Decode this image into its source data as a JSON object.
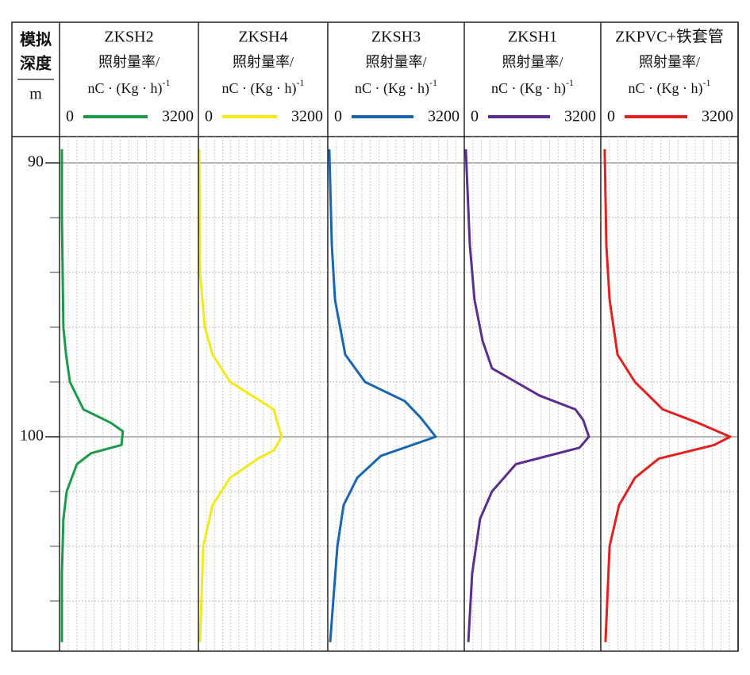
{
  "depth_axis": {
    "title_lines": [
      "模拟",
      "深度"
    ],
    "unit": "m",
    "ylim": [
      89.04,
      107.83
    ],
    "yticks": [
      90,
      100
    ],
    "minor_yticks": [
      92,
      94,
      96,
      98,
      102,
      104,
      106
    ]
  },
  "chart_data": [
    {
      "type": "line",
      "title": "ZKSH2",
      "subtitle": "照射量率/",
      "unit": "nC · (Kg · h)",
      "unit_exponent": "-1",
      "color": "#1a9a4a",
      "xlim": [
        0,
        3200
      ],
      "xticks": [
        0,
        3200
      ],
      "minor_xticks": [
        200,
        400,
        600,
        800,
        1000,
        1200,
        1400,
        1600,
        1800,
        2000,
        2200,
        2400,
        2600,
        2800,
        3000
      ],
      "depth": [
        89.5,
        92,
        96,
        97,
        98,
        99,
        99.5,
        99.8,
        100.3,
        100.6,
        101,
        102,
        103,
        105,
        107.5
      ],
      "values": [
        55,
        55,
        90,
        150,
        240,
        550,
        1190,
        1460,
        1430,
        730,
        400,
        165,
        90,
        55,
        55
      ]
    },
    {
      "type": "line",
      "title": "ZKSH4",
      "subtitle": "照射量率/",
      "unit": "nC · (Kg · h)",
      "unit_exponent": "-1",
      "color": "#f2ea12",
      "xlim": [
        0,
        3200
      ],
      "xticks": [
        0,
        3200
      ],
      "minor_xticks": [
        200,
        400,
        600,
        800,
        1000,
        1200,
        1400,
        1600,
        1800,
        2000,
        2200,
        2400,
        2600,
        2800,
        3000
      ],
      "depth": [
        89.5,
        94,
        96,
        97,
        98,
        99,
        99.5,
        100,
        100.5,
        100.8,
        101.5,
        102.5,
        104,
        107.5
      ],
      "values": [
        20,
        40,
        160,
        350,
        785,
        1865,
        1960,
        2060,
        1865,
        1470,
        785,
        350,
        120,
        40
      ]
    },
    {
      "type": "line",
      "title": "ZKSH3",
      "subtitle": "照射量率/",
      "unit": "nC · (Kg · h)",
      "unit_exponent": "-1",
      "color": "#1667b0",
      "xlim": [
        0,
        3200
      ],
      "xticks": [
        0,
        3200
      ],
      "minor_xticks": [
        200,
        400,
        600,
        800,
        1000,
        1200,
        1400,
        1600,
        1800,
        2000,
        2200,
        2400,
        2600,
        2800,
        3000
      ],
      "depth": [
        89.5,
        93,
        95,
        97,
        98,
        98.7,
        99.3,
        100,
        100.7,
        101.5,
        102.5,
        104,
        107.5
      ],
      "values": [
        35,
        95,
        170,
        410,
        875,
        1805,
        2175,
        2530,
        1245,
        690,
        370,
        225,
        55
      ]
    },
    {
      "type": "line",
      "title": "ZKSH1",
      "subtitle": "照射量率/",
      "unit": "nC · (Kg · h)",
      "unit_exponent": "-1",
      "color": "#5b2d90",
      "xlim": [
        0,
        3200
      ],
      "xticks": [
        0,
        3200
      ],
      "minor_xticks": [
        200,
        400,
        600,
        800,
        1000,
        1200,
        1400,
        1600,
        1800,
        2000,
        2200,
        2400,
        2600,
        2800,
        3000
      ],
      "depth": [
        89.5,
        93,
        95,
        96.5,
        97.5,
        98.5,
        99,
        99.4,
        100,
        100.4,
        101,
        102,
        103,
        105,
        107.5
      ],
      "values": [
        35,
        130,
        240,
        430,
        650,
        1765,
        2605,
        2790,
        2920,
        2700,
        1210,
        650,
        370,
        185,
        95
      ]
    },
    {
      "type": "line",
      "title": "ZKPVC+铁套管",
      "subtitle": "照射量率/",
      "unit": "nC · (Kg · h)",
      "unit_exponent": "-1",
      "color": "#e3201e",
      "xlim": [
        0,
        3200
      ],
      "xticks": [
        0,
        3200
      ],
      "minor_xticks": [
        200,
        400,
        600,
        800,
        1000,
        1200,
        1400,
        1600,
        1800,
        2000,
        2200,
        2400,
        2600,
        2800,
        3000
      ],
      "depth": [
        89.5,
        93,
        95,
        97,
        98,
        99,
        99.5,
        100,
        100.3,
        100.8,
        101.5,
        102.5,
        104,
        107.5
      ],
      "values": [
        90,
        130,
        205,
        390,
        795,
        1445,
        2275,
        3015,
        2645,
        1350,
        795,
        425,
        205,
        110
      ]
    }
  ]
}
